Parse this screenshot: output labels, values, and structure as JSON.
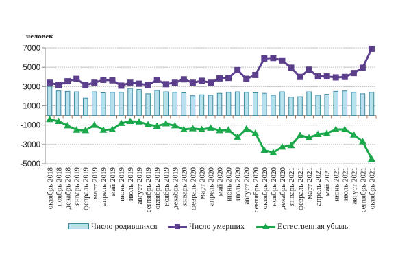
{
  "unit_label": "человек",
  "chart_data": {
    "type": "bar+line",
    "title": "",
    "ylabel": "человек",
    "xlabel": "",
    "ylim": [
      -5000,
      7000
    ],
    "yticks": [
      7000,
      5000,
      3000,
      1000,
      -1000,
      -3000,
      -5000
    ],
    "grid": true,
    "legend_position": "bottom",
    "categories": [
      "октябрь 2018",
      "ноябрь 2018",
      "декабрь 2018",
      "январь 2019",
      "февраль 2019",
      "март 2019",
      "апрель 2019",
      "май 2019",
      "июнь 2019",
      "июль 2019",
      "август 2019",
      "сентябрь 2019",
      "октябрь 2019",
      "ноябрь 2019",
      "декабрь 2019",
      "январь 2020",
      "февраль 2020",
      "март 2020",
      "апрель 2020",
      "май 2020",
      "июнь 2020",
      "июль 2020",
      "август 2020",
      "сентябрь 2020",
      "октябрь 2020",
      "ноябрь 2020",
      "декабрь 2020",
      "январь 2021",
      "февраль 2021",
      "март 2021",
      "апрель 2021",
      "май 2021",
      "июнь 2021",
      "июль 2021",
      "август 2021",
      "сентябрь 2021",
      "октябрь 2021"
    ],
    "series": [
      {
        "name": "Число родившихся",
        "kind": "bar",
        "color": "#b7e1ec",
        "edge_color": "#3d8aa5",
        "values": [
          3000,
          2550,
          2500,
          2450,
          1800,
          2450,
          2350,
          2400,
          2400,
          2800,
          2700,
          2250,
          2600,
          2450,
          2400,
          2350,
          2050,
          2150,
          2100,
          2300,
          2400,
          2450,
          2400,
          2350,
          2300,
          2100,
          2450,
          1900,
          1950,
          2450,
          2100,
          2200,
          2500,
          2550,
          2400,
          2250,
          2400
        ]
      },
      {
        "name": "Число умерших",
        "kind": "line",
        "marker": "square",
        "color": "#5b3f8c",
        "values": [
          3400,
          3150,
          3550,
          3800,
          3150,
          3400,
          3700,
          3650,
          3100,
          3400,
          3300,
          3150,
          3700,
          3250,
          3400,
          3750,
          3400,
          3600,
          3400,
          3850,
          3900,
          4700,
          3800,
          4200,
          5900,
          5950,
          5700,
          4950,
          4000,
          4750,
          4050,
          4050,
          3950,
          4000,
          4400,
          4950,
          6900
        ]
      },
      {
        "name": "Естественная убыль",
        "kind": "line",
        "marker": "triangle",
        "color": "#1aa84a",
        "values": [
          -400,
          -600,
          -1050,
          -1500,
          -1550,
          -1000,
          -1500,
          -1450,
          -800,
          -600,
          -650,
          -950,
          -1100,
          -850,
          -1050,
          -1450,
          -1350,
          -1450,
          -1300,
          -1550,
          -1500,
          -2250,
          -1400,
          -1850,
          -3600,
          -3850,
          -3250,
          -3100,
          -2050,
          -2300,
          -1950,
          -1850,
          -1450,
          -1450,
          -2000,
          -2700,
          -4500
        ]
      }
    ]
  }
}
